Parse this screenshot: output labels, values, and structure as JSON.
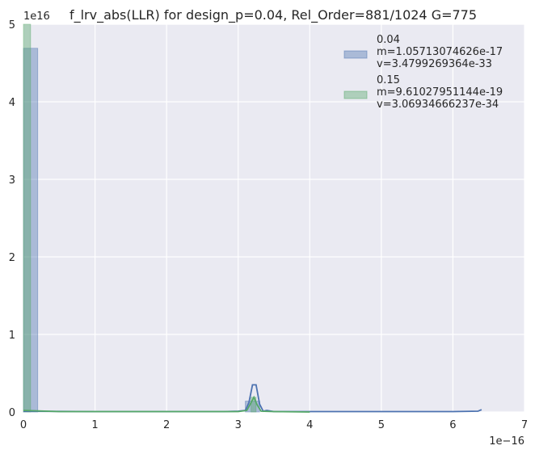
{
  "chart_data": {
    "type": "histogram",
    "title": "f_lrv_abs(LLR) for design_p=0.04, Rel_Order=881/1024 G=775",
    "xlabel": "",
    "ylabel": "",
    "x_offset_label": "1e−16",
    "y_offset_label": "1e16",
    "x_ticks": [
      "0",
      "1",
      "2",
      "3",
      "4",
      "5",
      "6",
      "7"
    ],
    "y_ticks": [
      "0",
      "1",
      "2",
      "3",
      "4",
      "5"
    ],
    "xlim": [
      0,
      7
    ],
    "ylim": [
      0,
      5
    ],
    "grid": true,
    "legend_position": "top-right",
    "series": [
      {
        "name": "0.04",
        "legend_lines": [
          "0.04",
          " m=1.05713074626e-17",
          " v=3.4799269364e-33"
        ],
        "color": "#4c72b0",
        "bars": [
          {
            "x0": 0.0,
            "x1": 0.2,
            "y": 4.69
          },
          {
            "x0": 3.1,
            "x1": 3.3,
            "y": 0.14
          }
        ],
        "kde": [
          [
            0,
            0.01
          ],
          [
            1,
            0.005
          ],
          [
            2,
            0.005
          ],
          [
            2.8,
            0.005
          ],
          [
            3.0,
            0.01
          ],
          [
            3.1,
            0.02
          ],
          [
            3.15,
            0.12
          ],
          [
            3.2,
            0.35
          ],
          [
            3.25,
            0.35
          ],
          [
            3.3,
            0.1
          ],
          [
            3.35,
            0.01
          ],
          [
            3.4,
            0.02
          ],
          [
            3.5,
            0.005
          ],
          [
            4,
            0.005
          ],
          [
            5,
            0.005
          ],
          [
            6,
            0.005
          ],
          [
            6.35,
            0.01
          ],
          [
            6.4,
            0.03
          ]
        ]
      },
      {
        "name": "0.15",
        "legend_lines": [
          "0.15",
          " m=9.61027951144e-19",
          " v=3.06934666237e-34"
        ],
        "color": "#55a868",
        "bars": [
          {
            "x0": 0.0,
            "x1": 0.1,
            "y": 5.0
          },
          {
            "x0": 3.18,
            "x1": 3.25,
            "y": 0.19
          }
        ],
        "kde": [
          [
            0,
            0.02
          ],
          [
            0.5,
            0.005
          ],
          [
            1,
            0.005
          ],
          [
            2,
            0.005
          ],
          [
            3.0,
            0.005
          ],
          [
            3.12,
            0.02
          ],
          [
            3.18,
            0.12
          ],
          [
            3.22,
            0.19
          ],
          [
            3.26,
            0.1
          ],
          [
            3.32,
            0.01
          ],
          [
            3.5,
            0.005
          ],
          [
            4,
            0.0
          ]
        ]
      }
    ]
  }
}
